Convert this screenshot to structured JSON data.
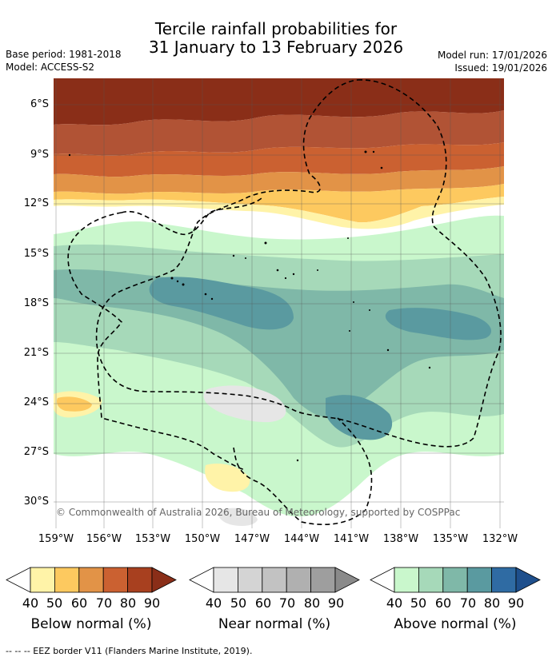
{
  "title": {
    "line1": "Tercile rainfall probabilities for",
    "line2": "31 January to 13 February 2026"
  },
  "meta": {
    "base_period": "Base period: 1981-2018",
    "model": "Model: ACCESS-S2",
    "model_run": "Model run: 17/01/2026",
    "issued": "Issued: 19/01/2026"
  },
  "map": {
    "lat_labels": [
      "6°S",
      "9°S",
      "12°S",
      "15°S",
      "18°S",
      "21°S",
      "24°S",
      "27°S",
      "30°S"
    ],
    "lon_labels": [
      "159°W",
      "156°W",
      "153°W",
      "150°W",
      "147°W",
      "144°W",
      "141°W",
      "138°W",
      "135°W",
      "132°W"
    ],
    "copyright": "© Commonwealth of Australia 2026, Bureau of Meteorology, supported by COSPPac"
  },
  "legend": {
    "below": {
      "caption": "Below normal (%)",
      "ticks": [
        "40",
        "50",
        "60",
        "70",
        "80",
        "90"
      ],
      "colors": [
        "#fff3a8",
        "#fdc95f",
        "#e29347",
        "#cb6131",
        "#a8401f",
        "#8a2e18"
      ]
    },
    "near": {
      "caption": "Near normal (%)",
      "ticks": [
        "40",
        "50",
        "60",
        "70",
        "80",
        "90"
      ],
      "colors": [
        "#e6e6e6",
        "#d4d4d4",
        "#c2c2c2",
        "#b0b0b0",
        "#9e9e9e",
        "#8a8a8a"
      ]
    },
    "above": {
      "caption": "Above normal (%)",
      "ticks": [
        "40",
        "50",
        "60",
        "70",
        "80",
        "90"
      ],
      "colors": [
        "#c9f7cc",
        "#a6d9b9",
        "#7fb8a8",
        "#5a9aa0",
        "#2f6ba3",
        "#1e4f8c"
      ]
    }
  },
  "footnote": "--  --  -- EEZ border V11 (Flanders Marine Institute, 2019)."
}
